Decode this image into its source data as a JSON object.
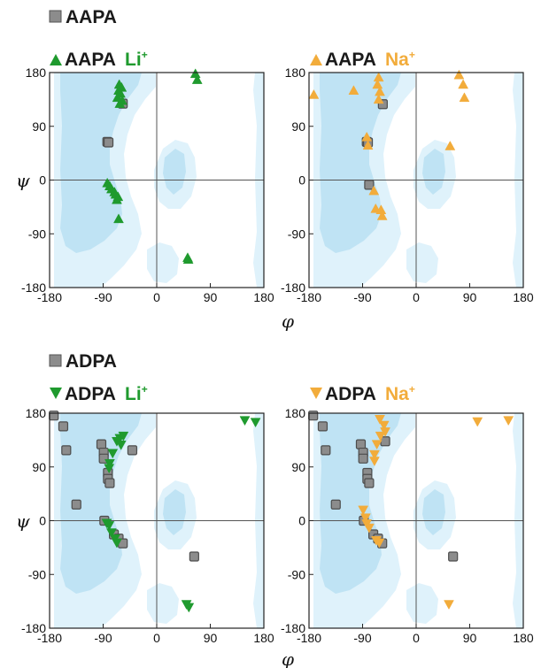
{
  "colors": {
    "square": "#8c8c8c",
    "li": "#1f9a2e",
    "na": "#f2ac3b",
    "region_outer": "#dff2fb",
    "region_inner": "#bfe3f4",
    "text": "#1a1a1a"
  },
  "legend": {
    "aapa": "AAPA",
    "aapa_li_name": "AAPA",
    "aapa_li_ion": "Li",
    "aapa_na_name": "AAPA",
    "aapa_na_ion": "Na",
    "adpa": "ADPA",
    "adpa_li_name": "ADPA",
    "adpa_li_ion": "Li",
    "adpa_na_name": "ADPA",
    "adpa_na_ion": "Na",
    "plus": "+"
  },
  "chart_data": [
    {
      "type": "scatter",
      "title": "",
      "xlabel": "φ",
      "ylabel": "ψ",
      "xlim": [
        -180,
        180
      ],
      "ylim": [
        -180,
        180
      ],
      "xticks": [
        -180,
        -90,
        0,
        90,
        180
      ],
      "yticks": [
        180,
        90,
        0,
        -90,
        -180
      ],
      "series": [
        {
          "name": "AAPA",
          "marker": "square",
          "color_key": "square",
          "points": [
            [
              -57,
              128
            ],
            [
              -83,
              64
            ],
            [
              -81,
              63
            ]
          ]
        },
        {
          "name": "AAPA Li+",
          "marker": "triangle-up",
          "color_key": "li",
          "points": [
            [
              -63,
              160
            ],
            [
              -59,
              155
            ],
            [
              -64,
              150
            ],
            [
              -61,
              145
            ],
            [
              -66,
              138
            ],
            [
              -58,
              133
            ],
            [
              -62,
              128
            ],
            [
              65,
              178
            ],
            [
              68,
              168
            ],
            [
              -83,
              -5
            ],
            [
              -79,
              -10
            ],
            [
              -76,
              -15
            ],
            [
              -71,
              -20
            ],
            [
              -69,
              -24
            ],
            [
              -65,
              -28
            ],
            [
              -67,
              -33
            ],
            [
              -64,
              -65
            ],
            [
              52,
              -130
            ],
            [
              53,
              -133
            ]
          ]
        }
      ]
    },
    {
      "type": "scatter",
      "title": "",
      "xlabel": "φ",
      "ylabel": "ψ",
      "xlim": [
        -180,
        180
      ],
      "ylim": [
        -180,
        180
      ],
      "xticks": [
        -180,
        -90,
        0,
        90,
        180
      ],
      "yticks": [
        180,
        90,
        0,
        -90,
        -180
      ],
      "series": [
        {
          "name": "AAPA",
          "marker": "square",
          "color_key": "square",
          "points": [
            [
              -56,
              127
            ],
            [
              -83,
              64
            ],
            [
              -81,
              63
            ],
            [
              -79,
              -8
            ]
          ]
        },
        {
          "name": "AAPA Na+",
          "marker": "triangle-up",
          "color_key": "na",
          "points": [
            [
              -172,
              143
            ],
            [
              -105,
              150
            ],
            [
              -63,
              172
            ],
            [
              -65,
              160
            ],
            [
              -61,
              148
            ],
            [
              -63,
              135
            ],
            [
              72,
              176
            ],
            [
              79,
              160
            ],
            [
              81,
              138
            ],
            [
              57,
              57
            ],
            [
              -83,
              72
            ],
            [
              -81,
              58
            ],
            [
              -71,
              -18
            ],
            [
              -68,
              -48
            ],
            [
              -59,
              -50
            ],
            [
              -57,
              -60
            ]
          ]
        }
      ]
    },
    {
      "type": "scatter",
      "title": "",
      "xlabel": "φ",
      "ylabel": "ψ",
      "xlim": [
        -180,
        180
      ],
      "ylim": [
        -180,
        180
      ],
      "xticks": [
        -180,
        -90,
        0,
        90,
        180
      ],
      "yticks": [
        180,
        90,
        0,
        -90,
        -180
      ],
      "series": [
        {
          "name": "ADPA",
          "marker": "square",
          "color_key": "square",
          "points": [
            [
              -173,
              176
            ],
            [
              -157,
              158
            ],
            [
              -152,
              118
            ],
            [
              -135,
              27
            ],
            [
              -93,
              128
            ],
            [
              -89,
              114
            ],
            [
              -89,
              104
            ],
            [
              -82,
              80
            ],
            [
              -82,
              70
            ],
            [
              -79,
              63
            ],
            [
              -41,
              118
            ],
            [
              -88,
              0
            ],
            [
              -72,
              -23
            ],
            [
              -64,
              -30
            ],
            [
              -57,
              -38
            ],
            [
              63,
              -60
            ]
          ]
        },
        {
          "name": "ADPA Li+",
          "marker": "triangle-down",
          "color_key": "li",
          "points": [
            [
              -62,
              138
            ],
            [
              -56,
              142
            ],
            [
              -67,
              133
            ],
            [
              -60,
              127
            ],
            [
              -74,
              113
            ],
            [
              -79,
              96
            ],
            [
              -80,
              88
            ],
            [
              -84,
              -4
            ],
            [
              -80,
              -8
            ],
            [
              -76,
              -20
            ],
            [
              -70,
              -30
            ],
            [
              -67,
              -37
            ],
            [
              148,
              168
            ],
            [
              166,
              165
            ],
            [
              50,
              -140
            ],
            [
              54,
              -145
            ]
          ]
        }
      ]
    },
    {
      "type": "scatter",
      "title": "",
      "xlabel": "φ",
      "ylabel": "ψ",
      "xlim": [
        -180,
        180
      ],
      "ylim": [
        -180,
        180
      ],
      "xticks": [
        -180,
        -90,
        0,
        90,
        180
      ],
      "yticks": [
        180,
        90,
        0,
        -90,
        -180
      ],
      "series": [
        {
          "name": "ADPA",
          "marker": "square",
          "color_key": "square",
          "points": [
            [
              -173,
              176
            ],
            [
              -157,
              158
            ],
            [
              -152,
              118
            ],
            [
              -135,
              27
            ],
            [
              -93,
              128
            ],
            [
              -89,
              114
            ],
            [
              -89,
              104
            ],
            [
              -82,
              80
            ],
            [
              -82,
              70
            ],
            [
              -79,
              63
            ],
            [
              -52,
              133
            ],
            [
              -88,
              0
            ],
            [
              -72,
              -23
            ],
            [
              -64,
              -30
            ],
            [
              -57,
              -38
            ],
            [
              62,
              -60
            ]
          ]
        },
        {
          "name": "ADPA Na+",
          "marker": "triangle-down",
          "color_key": "na",
          "points": [
            [
              -61,
              170
            ],
            [
              -54,
              160
            ],
            [
              -52,
              149
            ],
            [
              -60,
              142
            ],
            [
              -66,
              128
            ],
            [
              -70,
              111
            ],
            [
              -70,
              100
            ],
            [
              -89,
              18
            ],
            [
              -85,
              5
            ],
            [
              -83,
              -5
            ],
            [
              -79,
              -12
            ],
            [
              -67,
              -33
            ],
            [
              -62,
              -37
            ],
            [
              103,
              166
            ],
            [
              155,
              168
            ],
            [
              55,
              -140
            ]
          ]
        }
      ]
    }
  ]
}
